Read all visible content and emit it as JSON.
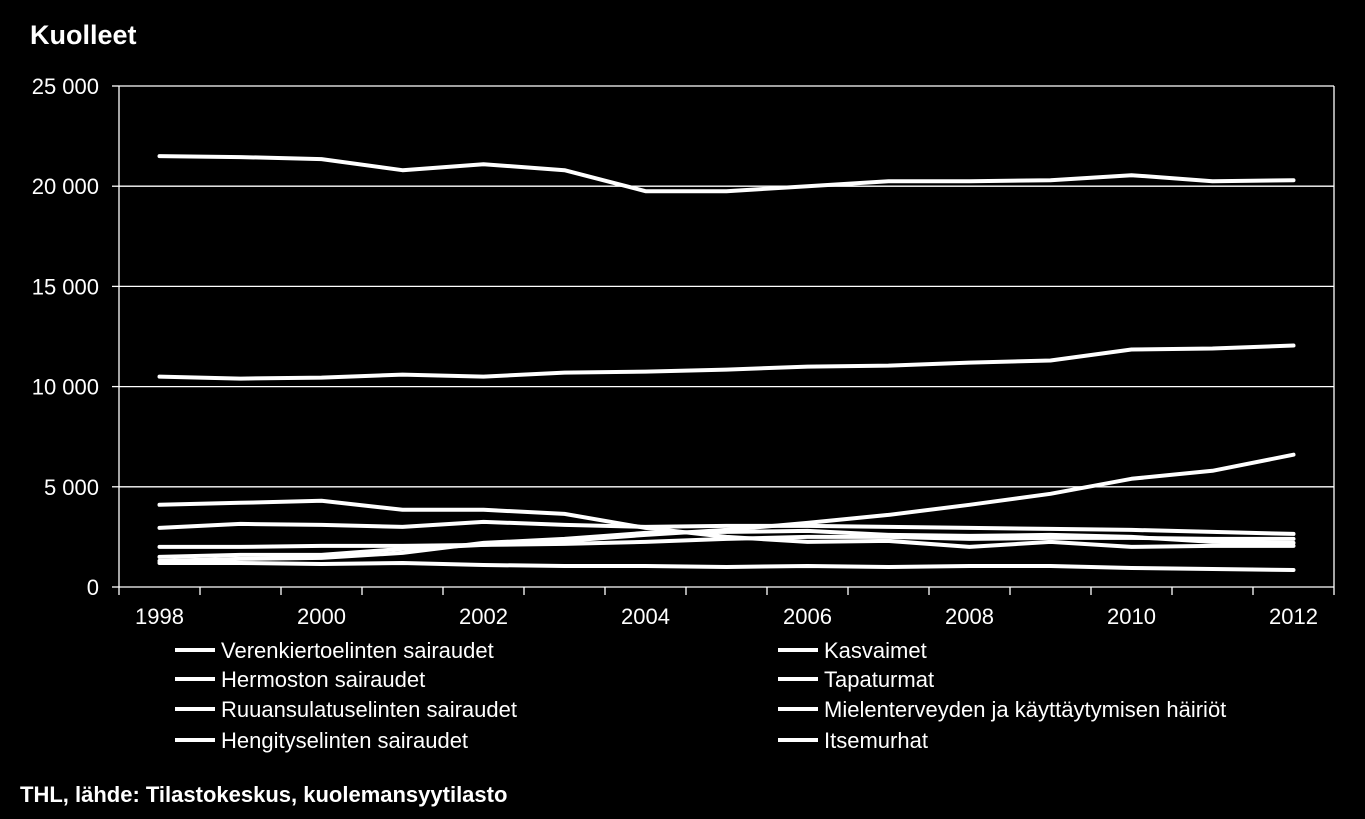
{
  "chart_data": {
    "type": "line",
    "title": "Kuolleet",
    "xlabel": "",
    "ylabel": "",
    "x": [
      1998,
      1999,
      2000,
      2001,
      2002,
      2003,
      2004,
      2005,
      2006,
      2007,
      2008,
      2009,
      2010,
      2011,
      2012
    ],
    "xticks": [
      "1998",
      "2000",
      "2002",
      "2004",
      "2006",
      "2008",
      "2010",
      "2012"
    ],
    "xlim": [
      1997.5,
      2012.5
    ],
    "yticks": [
      "0",
      "5 000",
      "10 000",
      "15 000",
      "20 000",
      "25 000"
    ],
    "ylim": [
      0,
      25000
    ],
    "grid": "horizontal",
    "legend_position": "bottom",
    "line_color": "#ffffff",
    "series": [
      {
        "name": "Verenkiertoelinten sairaudet",
        "values": [
          21500,
          21450,
          21350,
          20800,
          21100,
          20800,
          19750,
          19750,
          20000,
          20250,
          20250,
          20300,
          20550,
          20250,
          20300
        ]
      },
      {
        "name": "Kasvaimet",
        "values": [
          10500,
          10400,
          10450,
          10600,
          10500,
          10700,
          10750,
          10850,
          11000,
          11050,
          11200,
          11300,
          11850,
          11900,
          12050
        ]
      },
      {
        "name": "Hermoston sairaudet",
        "values": [
          1500,
          1600,
          1600,
          1900,
          2100,
          2300,
          2600,
          2850,
          3200,
          3600,
          4100,
          4650,
          5400,
          5800,
          6600
        ]
      },
      {
        "name": "Tapaturmat",
        "values": [
          2950,
          3150,
          3100,
          3000,
          3250,
          3100,
          3000,
          3050,
          3050,
          3000,
          2950,
          2900,
          2850,
          2750,
          2650
        ]
      },
      {
        "name": "Ruuansulatuselinten sairaudet",
        "values": [
          2000,
          2000,
          2050,
          2050,
          2100,
          2150,
          2250,
          2400,
          2500,
          2500,
          2400,
          2450,
          2450,
          2400,
          2400
        ]
      },
      {
        "name": "Mielenterveyden ja käyttäytymisen häiriöt",
        "values": [
          1300,
          1400,
          1450,
          1700,
          2200,
          2400,
          2700,
          2750,
          2800,
          2600,
          2550,
          2600,
          2500,
          2250,
          2200
        ]
      },
      {
        "name": "Hengityselinten sairaudet",
        "values": [
          4100,
          4200,
          4300,
          3850,
          3850,
          3650,
          2950,
          2500,
          2250,
          2300,
          2000,
          2250,
          2000,
          2050,
          2050
        ]
      },
      {
        "name": "Itsemurhat",
        "values": [
          1200,
          1200,
          1150,
          1200,
          1100,
          1050,
          1050,
          1000,
          1050,
          1000,
          1050,
          1050,
          950,
          900,
          850
        ]
      }
    ]
  },
  "source": "THL, lähde: Tilastokeskus, kuolemansyytilasto"
}
